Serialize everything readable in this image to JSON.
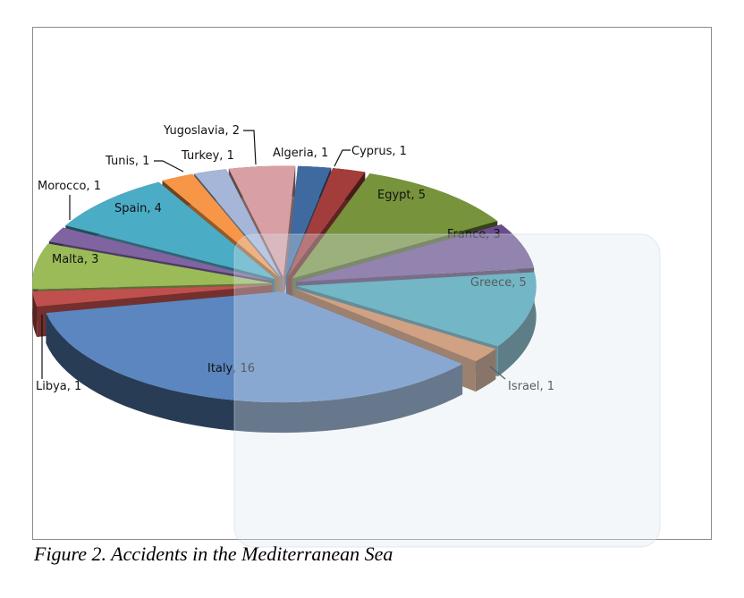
{
  "caption": "Figure 2. Accidents in the Mediterranean Sea",
  "chart_data": {
    "type": "pie",
    "style": "3d-exploded",
    "title": "",
    "data_labels": "category, value",
    "slices": [
      {
        "label": "Algeria",
        "value": 1,
        "color": "#3f6aa0"
      },
      {
        "label": "Cyprus",
        "value": 1,
        "color": "#a33d3b"
      },
      {
        "label": "Egypt",
        "value": 5,
        "color": "#77933c"
      },
      {
        "label": "France",
        "value": 3,
        "color": "#6a4e8c"
      },
      {
        "label": "Greece",
        "value": 5,
        "color": "#3a9bb0"
      },
      {
        "label": "Israel",
        "value": 1,
        "color": "#c87b48"
      },
      {
        "label": "Italy",
        "value": 16,
        "color": "#5b86c0"
      },
      {
        "label": "Libya",
        "value": 1,
        "color": "#c0504d"
      },
      {
        "label": "Malta",
        "value": 3,
        "color": "#9bbb59"
      },
      {
        "label": "Morocco",
        "value": 1,
        "color": "#8064a2"
      },
      {
        "label": "Spain",
        "value": 4,
        "color": "#4bacc6"
      },
      {
        "label": "Tunis",
        "value": 1,
        "color": "#f79646"
      },
      {
        "label": "Turkey",
        "value": 1,
        "color": "#a5b6d8"
      },
      {
        "label": "Yugoslavia",
        "value": 2,
        "color": "#d8a0a4"
      }
    ]
  }
}
